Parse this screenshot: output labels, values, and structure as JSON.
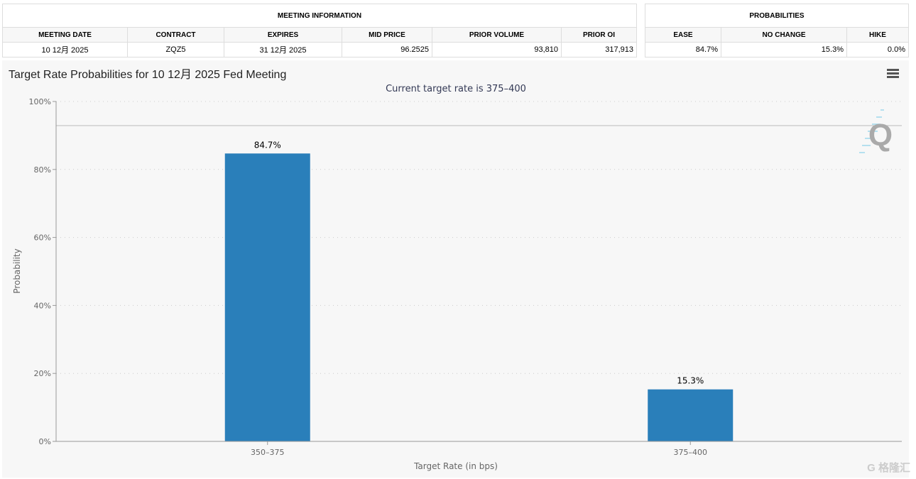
{
  "meeting_info": {
    "title": "MEETING INFORMATION",
    "headers": [
      "MEETING DATE",
      "CONTRACT",
      "EXPIRES",
      "MID PRICE",
      "PRIOR VOLUME",
      "PRIOR OI"
    ],
    "values": [
      "10 12月 2025",
      "ZQZ5",
      "31 12月 2025",
      "96.2525",
      "93,810",
      "317,913"
    ]
  },
  "probabilities": {
    "title": "PROBABILITIES",
    "headers": [
      "EASE",
      "NO CHANGE",
      "HIKE"
    ],
    "values": [
      "84.7%",
      "15.3%",
      "0.0%"
    ]
  },
  "chart_title": "Target Rate Probabilities for 10 12月 2025 Fed Meeting",
  "watermark_logo": "格隆汇",
  "chart_data": {
    "type": "bar",
    "subtitle": "Current target rate is 375–400",
    "xlabel": "Target Rate (in bps)",
    "ylabel": "Probability",
    "categories": [
      "350–375",
      "375–400"
    ],
    "values": [
      84.7,
      15.3
    ],
    "data_labels": [
      "84.7%",
      "15.3%"
    ],
    "ylim": [
      0,
      100
    ],
    "yticks": [
      "0%",
      "20%",
      "40%",
      "60%",
      "80%",
      "100%"
    ],
    "grid": true,
    "bar_color": "#2a7fba"
  }
}
